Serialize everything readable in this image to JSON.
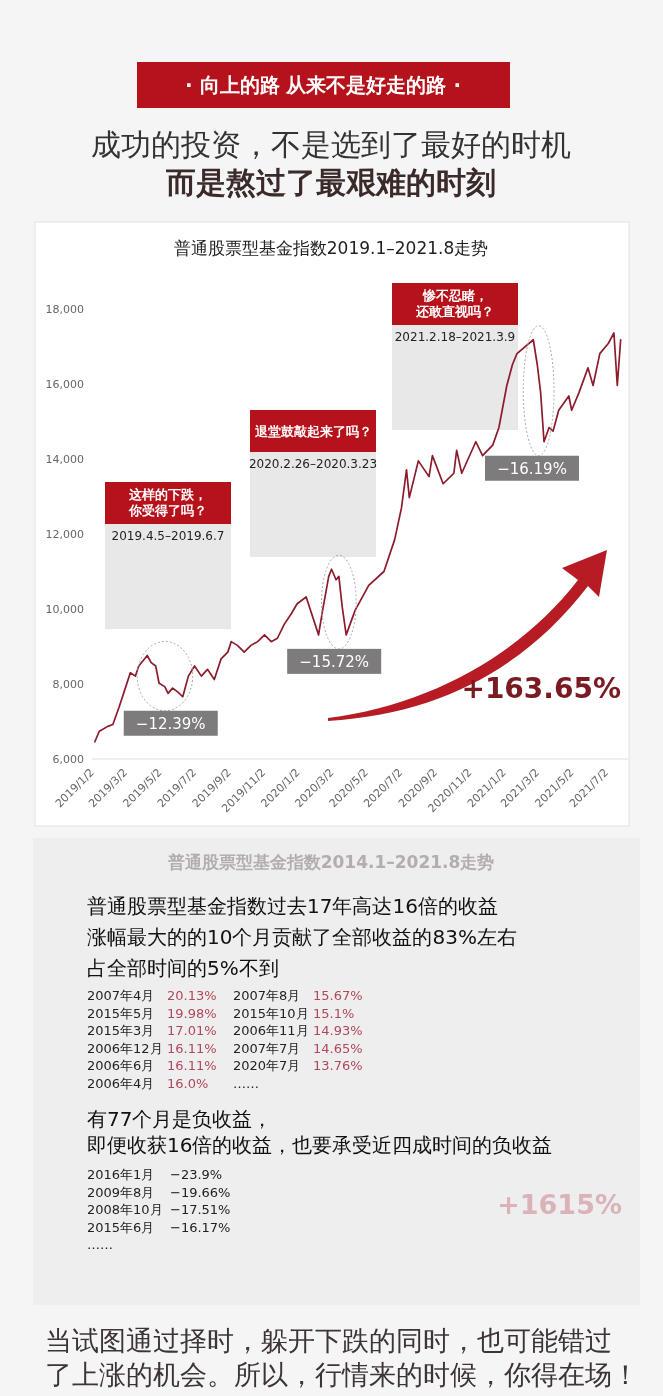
{
  "chart_data": [
    {
      "type": "other",
      "title": "· 向上的路 从来不是好走的路 ·",
      "subtitle": "成功的投资，不是选到了最好的时机",
      "annotations": [
        "而是熬过了最艰难的时刻"
      ]
    },
    {
      "type": "line",
      "title": "普通股票型基金指数2019.1–2021.8走势",
      "x": [
        "2019-01-02",
        "2019-01-10",
        "2019-01-25",
        "2019-02-03",
        "2019-02-14",
        "2019-02-26",
        "2019-03-06",
        "2019-03-15",
        "2019-03-21",
        "2019-04-05",
        "2019-04-12",
        "2019-04-20",
        "2019-04-26",
        "2019-05-06",
        "2019-05-12",
        "2019-05-20",
        "2019-05-29",
        "2019-06-07",
        "2019-06-17",
        "2019-06-28",
        "2019-07-10",
        "2019-07-21",
        "2019-08-02",
        "2019-08-14",
        "2019-08-26",
        "2019-09-01",
        "2019-09-12",
        "2019-09-24",
        "2019-10-06",
        "2019-10-18",
        "2019-10-30",
        "2019-11-11",
        "2019-11-22",
        "2019-12-04",
        "2019-12-16",
        "2019-12-27",
        "2020-01-12",
        "2020-02-03",
        "2020-02-10",
        "2020-02-21",
        "2020-02-26",
        "2020-03-05",
        "2020-03-10",
        "2020-03-16",
        "2020-03-23",
        "2020-04-08",
        "2020-05-02",
        "2020-05-29",
        "2020-06-17",
        "2020-06-29",
        "2020-07-08",
        "2020-07-13",
        "2020-07-29",
        "2020-08-17",
        "2020-08-23",
        "2020-09-11",
        "2020-09-30",
        "2020-10-05",
        "2020-10-14",
        "2020-11-08",
        "2020-11-20",
        "2020-12-08",
        "2020-12-19",
        "2021-01-02",
        "2021-01-12",
        "2021-01-20",
        "2021-02-18",
        "2021-02-25",
        "2021-03-03",
        "2021-03-09",
        "2021-03-18",
        "2021-03-25",
        "2021-04-04",
        "2021-04-22",
        "2021-04-27",
        "2021-05-10",
        "2021-05-26",
        "2021-06-04",
        "2021-06-16",
        "2021-07-01",
        "2021-07-11",
        "2021-07-17",
        "2021-07-23"
      ],
      "series": [
        {
          "color": "#8c1c2c",
          "values": [
            6460,
            6740,
            6870,
            6920,
            7380,
            7930,
            8300,
            8210,
            8480,
            8760,
            8570,
            8480,
            8020,
            7930,
            7750,
            7890,
            7790,
            7660,
            8210,
            8480,
            8210,
            8390,
            8120,
            8670,
            8850,
            9130,
            9030,
            8850,
            9030,
            9130,
            9310,
            9130,
            9220,
            9590,
            9860,
            10140,
            10320,
            9310,
            9950,
            10870,
            11060,
            10780,
            10870,
            10050,
            9310,
            9970,
            10630,
            11000,
            11850,
            12690,
            13710,
            12970,
            13950,
            13530,
            14090,
            13340,
            13620,
            14230,
            13620,
            14460,
            14090,
            14370,
            14840,
            15960,
            16520,
            16810,
            17180,
            16520,
            15770,
            14460,
            14840,
            14740,
            15300,
            15680,
            15300,
            15770,
            16430,
            15960,
            16810,
            17080,
            17360,
            15960,
            17180
          ]
        }
      ],
      "xlim": [
        "2018-12-28",
        "2021-08-05"
      ],
      "xticks": [
        {
          "value": "2019-01-02",
          "label": "2019/1/2"
        },
        {
          "value": "2019-03-02",
          "label": "2019/3/2"
        },
        {
          "value": "2019-05-02",
          "label": "2019/5/2"
        },
        {
          "value": "2019-07-02",
          "label": "2019/7/2"
        },
        {
          "value": "2019-09-02",
          "label": "2019/9/2"
        },
        {
          "value": "2019-11-02",
          "label": "2019/11/2"
        },
        {
          "value": "2020-01-02",
          "label": "2020/1/2"
        },
        {
          "value": "2020-03-02",
          "label": "2020/3/2"
        },
        {
          "value": "2020-05-02",
          "label": "2020/5/2"
        },
        {
          "value": "2020-07-02",
          "label": "2020/7/2"
        },
        {
          "value": "2020-09-02",
          "label": "2020/9/2"
        },
        {
          "value": "2020-11-02",
          "label": "2020/11/2"
        },
        {
          "value": "2021-01-02",
          "label": "2021/1/2"
        },
        {
          "value": "2021-03-02",
          "label": "2021/3/2"
        },
        {
          "value": "2021-05-02",
          "label": "2021/5/2"
        },
        {
          "value": "2021-07-02",
          "label": "2021/7/2"
        }
      ],
      "ylim": [
        6000,
        18000
      ],
      "yticks": [
        {
          "value": 6000,
          "label": "6,000"
        },
        {
          "value": 8000,
          "label": "8,000"
        },
        {
          "value": 10000,
          "label": "10,000"
        },
        {
          "value": 12000,
          "label": "12,000"
        },
        {
          "value": 14000,
          "label": "14,000"
        },
        {
          "value": 16000,
          "label": "16,000"
        },
        {
          "value": 18000,
          "label": "18,000"
        }
      ],
      "annotations": [
        {
          "text": "−12.39%",
          "x": "2019-06-07",
          "y": 7660
        },
        {
          "text": "−15.72%",
          "x": "2020-03-23",
          "y": 9310
        },
        {
          "text": "−16.19%",
          "x": "2021-03-09",
          "y": 14460
        },
        "这样的下跌，你受得了吗？",
        "退堂鼓敲起来了吗？",
        "惨不忍睹，还敢直视吗？",
        "2019.4.5–2019.6.7",
        "2020.2.26–2020.3.23",
        "2021.2.18–2021.3.9",
        "+163.65%"
      ]
    },
    {
      "type": "other",
      "title": "普通股票型基金指数2014.1–2021.8走势",
      "annotations": [
        "普通股票型基金指数过去17年高达16倍的收益",
        "涨幅最大的的10个月贡献了全部收益的83%左右",
        "占全部时间的5%不到",
        "2007年4月 20.13%",
        "2007年8月 15.67%",
        "2015年5月 19.98%",
        "2015年10月 15.1%",
        "2015年3月 17.01%",
        "2006年11月 14.93%",
        "2006年12月 16.11%",
        "2007年7月 14.65%",
        "2006年6月 16.11%",
        "2020年7月 13.76%",
        "2006年4月 16.0%",
        "……"
      ]
    },
    {
      "type": "other",
      "title": "+1615%",
      "annotations": [
        "有77个月是负收益，",
        "即便收获16倍的收益，也要承受近四成时间的负收益",
        "2016年1月 −23.9%",
        "2009年8月 −19.66%",
        "2008年10月 −17.51%",
        "2015年6月 −16.17%",
        "……"
      ]
    },
    {
      "type": "other",
      "title": "当试图通过择时，躲开下跌的同时，也可能错过",
      "subtitle": "了上涨的机会。所以，行情来的时候，你得在场！"
    }
  ]
}
